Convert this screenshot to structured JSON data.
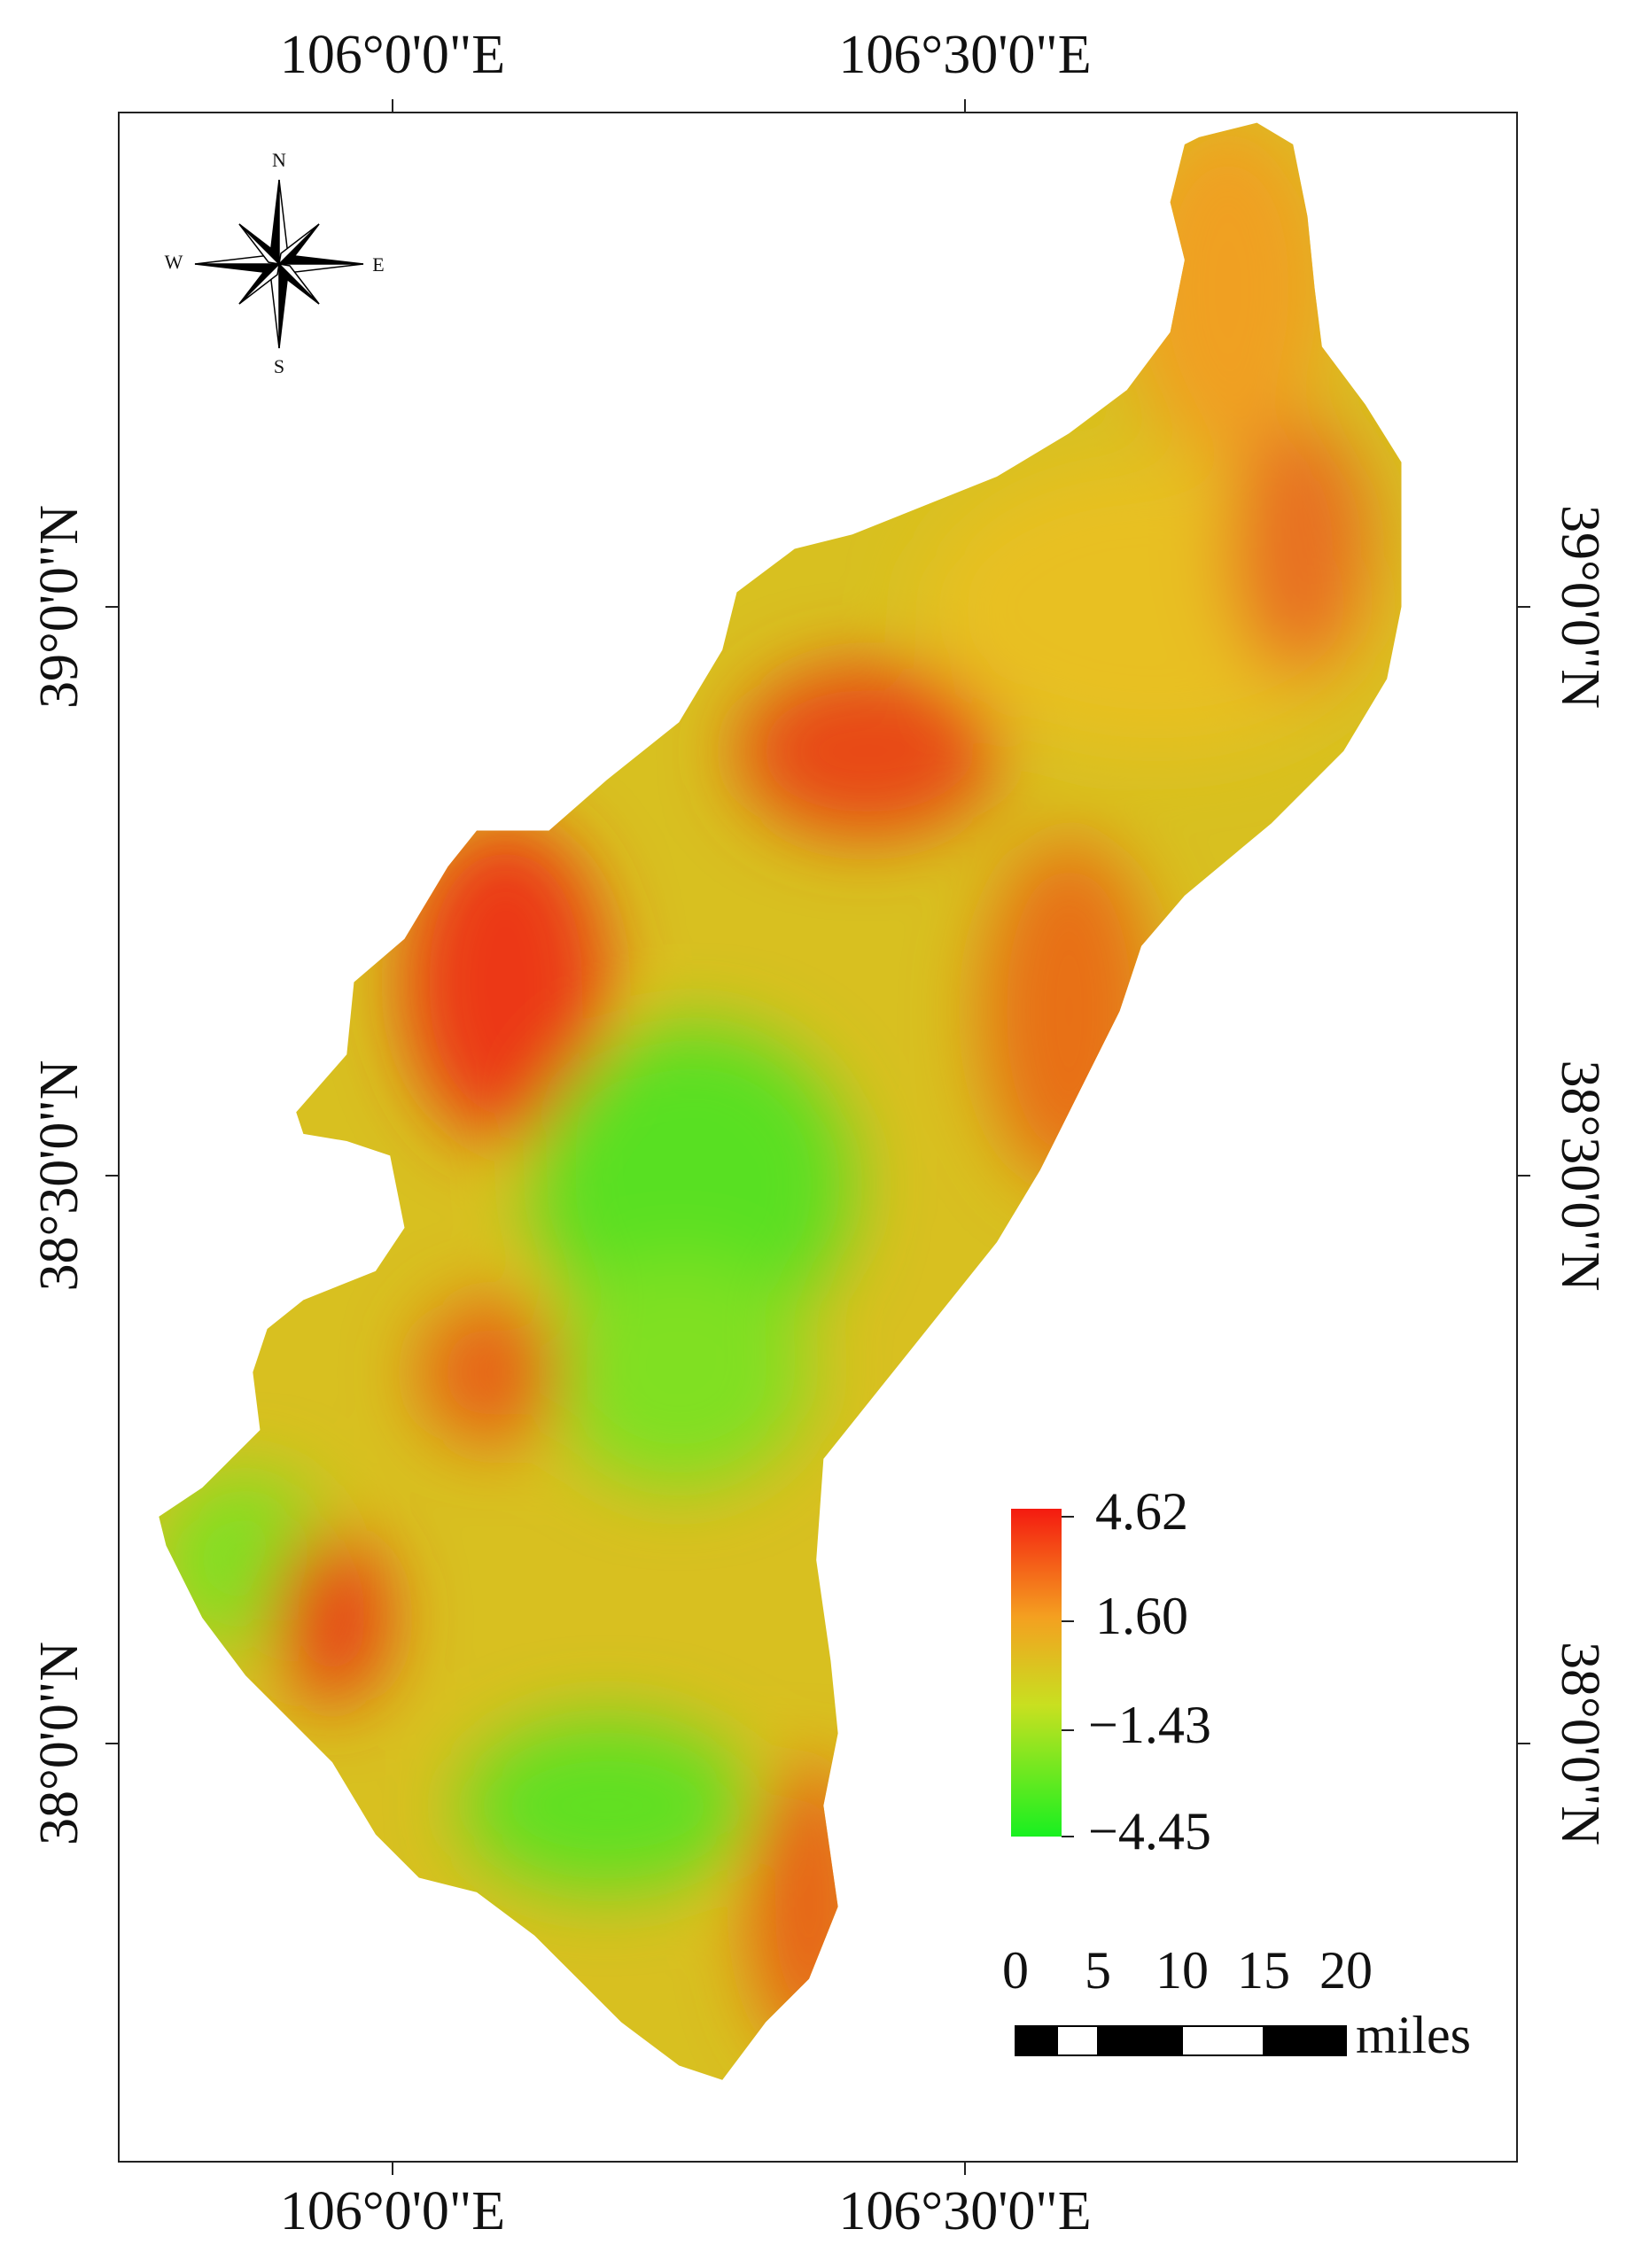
{
  "longitude_labels": [
    "106°0'0\"E",
    "106°30'0\"E"
  ],
  "latitude_labels": [
    "39°0'0\"N",
    "38°30'0\"N",
    "38°0'0\"N"
  ],
  "compass": {
    "north": "N",
    "east": "E",
    "south": "S",
    "west": "W"
  },
  "legend": {
    "labels": [
      "4.62",
      "1.60",
      "−1.43",
      "−4.45"
    ]
  },
  "scale_bar": {
    "ticks": [
      "0",
      "5",
      "10",
      "15",
      "20"
    ],
    "unit": "miles"
  }
}
